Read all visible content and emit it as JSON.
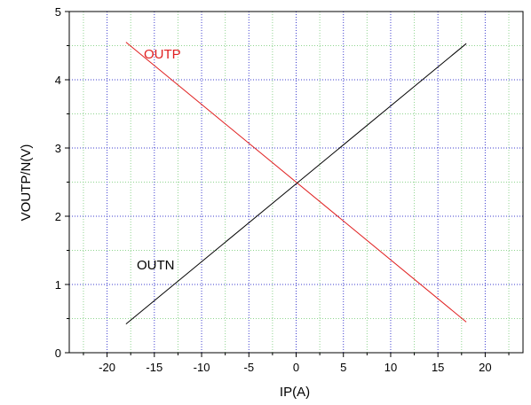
{
  "chart_data": {
    "type": "line",
    "title": "",
    "xlabel": "IP(A)",
    "ylabel": "VOUTP/N(V)",
    "xlim": [
      -24,
      24
    ],
    "ylim": [
      0,
      5
    ],
    "xticks": [
      -20,
      -15,
      -10,
      -5,
      0,
      5,
      10,
      15,
      20
    ],
    "yticks": [
      0,
      1,
      2,
      3,
      4,
      5
    ],
    "x_minor_step": 2.5,
    "y_minor_step": 0.5,
    "grid": true,
    "grid_major_color": "#3d3dcf",
    "grid_minor_color": "#8fd48f",
    "series": [
      {
        "name": "OUTP",
        "color": "#e02020",
        "x": [
          -18,
          18
        ],
        "y": [
          4.55,
          0.45
        ]
      },
      {
        "name": "OUTN",
        "color": "#000000",
        "x": [
          -18,
          18
        ],
        "y": [
          0.42,
          4.53
        ]
      }
    ],
    "labels": {
      "xlabel": "IP(A)",
      "ylabel": "VOUTP/N(V)",
      "outp": "OUTP",
      "outn": "OUTN"
    }
  }
}
